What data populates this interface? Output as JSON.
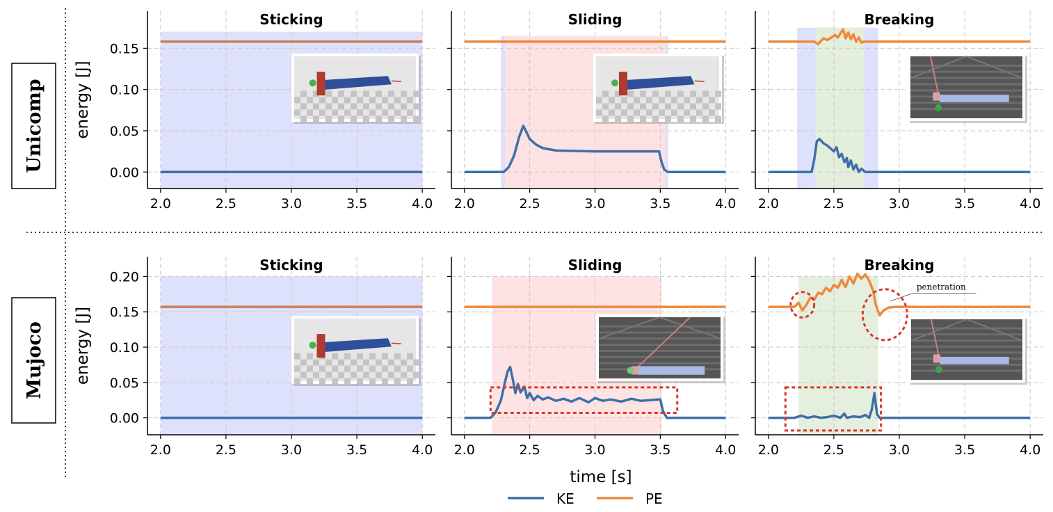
{
  "figure": {
    "xlabel": "time [s]",
    "row_labels": [
      "Unicomp",
      "Mujoco"
    ],
    "panel_titles": [
      "Sticking",
      "Sliding",
      "Breaking"
    ],
    "annotation": "penetration"
  },
  "legend": {
    "placement": "bottom-center",
    "entries": [
      {
        "label": "KE",
        "color": "#3f6fa8"
      },
      {
        "label": "PE",
        "color": "#ee8a3a"
      }
    ]
  },
  "colors": {
    "ke": "#3f6fa8",
    "pe": "#ee8a3a",
    "pe_muted": "#cf7d55",
    "sticking_shade": "#dcdffb",
    "sliding_shade": "#fde1e1",
    "breaking_shade": "#e3eedb",
    "highlight": "#d9372a"
  },
  "chart_data": [
    {
      "type": "line",
      "id": "unicomp-sticking",
      "row": "Unicomp",
      "title": "Sticking",
      "xlabel": "",
      "ylabel": "energy [J]",
      "xlim": [
        1.9,
        4.1
      ],
      "ylim": [
        -0.02,
        0.195
      ],
      "xticks": [
        "2.0",
        "2.5",
        "3.0",
        "3.5",
        "4.0"
      ],
      "xtick_values": [
        2.0,
        2.5,
        3.0,
        3.5,
        4.0
      ],
      "yticks": [
        "0.00",
        "0.05",
        "0.10",
        "0.15"
      ],
      "ytick_values": [
        0.0,
        0.05,
        0.1,
        0.15
      ],
      "grid": true,
      "regions": [
        {
          "phase": "sticking",
          "x0": 2.0,
          "x1": 4.0,
          "y0": -0.02,
          "y1": 0.17
        }
      ],
      "series": [
        {
          "name": "KE",
          "color_key": "ke",
          "x": [
            2.0,
            4.0
          ],
          "values": [
            0.0,
            0.0
          ]
        },
        {
          "name": "PE",
          "color_key": "pe_muted",
          "x": [
            2.0,
            4.0
          ],
          "values": [
            0.158,
            0.158
          ]
        }
      ],
      "highlights": []
    },
    {
      "type": "line",
      "id": "unicomp-sliding",
      "row": "Unicomp",
      "title": "Sliding",
      "xlabel": "",
      "ylabel": "",
      "xlim": [
        1.9,
        4.1
      ],
      "ylim": [
        -0.02,
        0.195
      ],
      "xticks": [
        "2.0",
        "2.5",
        "3.0",
        "3.5",
        "4.0"
      ],
      "xtick_values": [
        2.0,
        2.5,
        3.0,
        3.5,
        4.0
      ],
      "yticks": [],
      "ytick_values": [
        0.0,
        0.05,
        0.1,
        0.15
      ],
      "grid": true,
      "regions": [
        {
          "phase": "sticking",
          "x0": 2.28,
          "x1": 3.56,
          "y0": -0.02,
          "y1": 0.165
        },
        {
          "phase": "sliding",
          "x0": 2.31,
          "x1": 3.54,
          "y0": -0.02,
          "y1": 0.165
        }
      ],
      "series": [
        {
          "name": "KE",
          "color_key": "ke",
          "x": [
            2.0,
            2.3,
            2.34,
            2.38,
            2.42,
            2.45,
            2.47,
            2.5,
            2.55,
            2.6,
            2.7,
            2.85,
            3.0,
            3.2,
            3.4,
            3.49,
            3.51,
            3.53,
            3.56,
            4.0
          ],
          "values": [
            0.0,
            0.0,
            0.006,
            0.02,
            0.043,
            0.056,
            0.05,
            0.04,
            0.033,
            0.029,
            0.026,
            0.0255,
            0.025,
            0.025,
            0.025,
            0.025,
            0.012,
            0.003,
            0.0,
            0.0
          ]
        },
        {
          "name": "PE",
          "color_key": "pe",
          "x": [
            2.0,
            4.0
          ],
          "values": [
            0.158,
            0.158
          ]
        }
      ],
      "highlights": []
    },
    {
      "type": "line",
      "id": "unicomp-breaking",
      "row": "Unicomp",
      "title": "Breaking",
      "xlabel": "",
      "ylabel": "",
      "xlim": [
        1.9,
        4.1
      ],
      "ylim": [
        -0.02,
        0.195
      ],
      "xticks": [
        "2.0",
        "2.5",
        "3.0",
        "3.5",
        "4.0"
      ],
      "xtick_values": [
        2.0,
        2.5,
        3.0,
        3.5,
        4.0
      ],
      "yticks": [],
      "ytick_values": [
        0.0,
        0.05,
        0.1,
        0.15
      ],
      "grid": true,
      "regions": [
        {
          "phase": "sticking",
          "x0": 2.22,
          "x1": 2.84,
          "y0": -0.02,
          "y1": 0.175
        },
        {
          "phase": "breaking",
          "x0": 2.36,
          "x1": 2.73,
          "y0": -0.02,
          "y1": 0.175
        }
      ],
      "series": [
        {
          "name": "KE",
          "color_key": "ke",
          "x": [
            2.0,
            2.33,
            2.35,
            2.37,
            2.39,
            2.42,
            2.45,
            2.48,
            2.5,
            2.52,
            2.54,
            2.56,
            2.58,
            2.6,
            2.61,
            2.63,
            2.65,
            2.67,
            2.69,
            2.71,
            2.74,
            4.0
          ],
          "values": [
            0.0,
            0.0,
            0.015,
            0.037,
            0.04,
            0.035,
            0.032,
            0.028,
            0.025,
            0.03,
            0.018,
            0.022,
            0.012,
            0.017,
            0.006,
            0.014,
            0.003,
            0.009,
            0.0,
            0.004,
            0.0,
            0.0
          ]
        },
        {
          "name": "PE",
          "color_key": "pe",
          "x": [
            2.0,
            2.35,
            2.38,
            2.42,
            2.45,
            2.48,
            2.51,
            2.53,
            2.55,
            2.57,
            2.59,
            2.61,
            2.63,
            2.65,
            2.67,
            2.69,
            2.71,
            2.73,
            4.0
          ],
          "values": [
            0.158,
            0.158,
            0.155,
            0.162,
            0.16,
            0.163,
            0.166,
            0.163,
            0.168,
            0.173,
            0.162,
            0.169,
            0.161,
            0.167,
            0.158,
            0.163,
            0.157,
            0.158,
            0.158
          ]
        }
      ],
      "highlights": []
    },
    {
      "type": "line",
      "id": "mujoco-sticking",
      "row": "Mujoco",
      "title": "Sticking",
      "xlabel": "",
      "ylabel": "energy [J]",
      "xlim": [
        1.9,
        4.1
      ],
      "ylim": [
        -0.024,
        0.228
      ],
      "xticks": [
        "2.0",
        "2.5",
        "3.0",
        "3.5",
        "4.0"
      ],
      "xtick_values": [
        2.0,
        2.5,
        3.0,
        3.5,
        4.0
      ],
      "yticks": [
        "0.00",
        "0.05",
        "0.10",
        "0.15",
        "0.20"
      ],
      "ytick_values": [
        0.0,
        0.05,
        0.1,
        0.15,
        0.2
      ],
      "grid": true,
      "regions": [
        {
          "phase": "sticking",
          "x0": 2.0,
          "x1": 4.0,
          "y0": -0.024,
          "y1": 0.2
        }
      ],
      "series": [
        {
          "name": "KE",
          "color_key": "ke",
          "x": [
            2.0,
            4.0
          ],
          "values": [
            0.0,
            0.0
          ]
        },
        {
          "name": "PE",
          "color_key": "pe_muted",
          "x": [
            2.0,
            4.0
          ],
          "values": [
            0.157,
            0.157
          ]
        }
      ],
      "highlights": []
    },
    {
      "type": "line",
      "id": "mujoco-sliding",
      "row": "Mujoco",
      "title": "Sliding",
      "xlabel": "",
      "ylabel": "",
      "xlim": [
        1.9,
        4.1
      ],
      "ylim": [
        -0.024,
        0.228
      ],
      "xticks": [
        "2.0",
        "2.5",
        "3.0",
        "3.5",
        "4.0"
      ],
      "xtick_values": [
        2.0,
        2.5,
        3.0,
        3.5,
        4.0
      ],
      "yticks": [],
      "ytick_values": [
        0.0,
        0.05,
        0.1,
        0.15,
        0.2
      ],
      "grid": true,
      "regions": [
        {
          "phase": "sliding",
          "x0": 2.21,
          "x1": 3.51,
          "y0": -0.024,
          "y1": 0.2
        }
      ],
      "series": [
        {
          "name": "KE",
          "color_key": "ke",
          "x": [
            2.0,
            2.2,
            2.24,
            2.28,
            2.31,
            2.33,
            2.35,
            2.37,
            2.39,
            2.41,
            2.43,
            2.46,
            2.48,
            2.5,
            2.53,
            2.56,
            2.6,
            2.64,
            2.7,
            2.76,
            2.82,
            2.88,
            2.95,
            3.0,
            3.06,
            3.12,
            3.2,
            3.28,
            3.35,
            3.42,
            3.48,
            3.5,
            3.52,
            3.55,
            4.0
          ],
          "values": [
            0.0,
            0.0,
            0.008,
            0.025,
            0.05,
            0.065,
            0.072,
            0.055,
            0.035,
            0.048,
            0.036,
            0.044,
            0.028,
            0.035,
            0.025,
            0.031,
            0.026,
            0.029,
            0.024,
            0.027,
            0.023,
            0.028,
            0.022,
            0.028,
            0.024,
            0.026,
            0.023,
            0.027,
            0.024,
            0.025,
            0.026,
            0.026,
            0.01,
            0.0,
            0.0
          ]
        },
        {
          "name": "PE",
          "color_key": "pe",
          "x": [
            2.0,
            4.0
          ],
          "values": [
            0.157,
            0.157
          ]
        }
      ],
      "highlights": [
        {
          "shape": "rect",
          "x0": 2.2,
          "x1": 3.63,
          "y0": 0.007,
          "y1": 0.043
        }
      ]
    },
    {
      "type": "line",
      "id": "mujoco-breaking",
      "row": "Mujoco",
      "title": "Breaking",
      "xlabel": "",
      "ylabel": "",
      "xlim": [
        1.9,
        4.1
      ],
      "ylim": [
        -0.024,
        0.228
      ],
      "xticks": [
        "2.0",
        "2.5",
        "3.0",
        "3.5",
        "4.0"
      ],
      "xtick_values": [
        2.0,
        2.5,
        3.0,
        3.5,
        4.0
      ],
      "yticks": [],
      "ytick_values": [
        0.0,
        0.05,
        0.1,
        0.15,
        0.2
      ],
      "grid": true,
      "regions": [
        {
          "phase": "breaking",
          "x0": 2.23,
          "x1": 2.84,
          "y0": -0.024,
          "y1": 0.2
        }
      ],
      "series": [
        {
          "name": "KE",
          "color_key": "ke",
          "x": [
            2.0,
            2.2,
            2.25,
            2.3,
            2.35,
            2.4,
            2.45,
            2.5,
            2.55,
            2.58,
            2.6,
            2.65,
            2.7,
            2.74,
            2.77,
            2.79,
            2.81,
            2.83,
            2.85,
            4.0
          ],
          "values": [
            0.0,
            0.0,
            0.003,
            0.0,
            0.002,
            0.0,
            0.001,
            0.003,
            0.0,
            0.006,
            0.0,
            0.002,
            0.001,
            0.004,
            0.0,
            0.012,
            0.035,
            0.005,
            0.0,
            0.0
          ]
        },
        {
          "name": "PE",
          "color_key": "pe",
          "x": [
            2.0,
            2.2,
            2.23,
            2.26,
            2.29,
            2.32,
            2.35,
            2.38,
            2.41,
            2.44,
            2.47,
            2.5,
            2.53,
            2.56,
            2.59,
            2.62,
            2.65,
            2.68,
            2.71,
            2.74,
            2.77,
            2.8,
            2.82,
            2.85,
            2.88,
            2.92,
            2.97,
            3.0,
            4.0
          ],
          "values": [
            0.157,
            0.157,
            0.163,
            0.152,
            0.16,
            0.17,
            0.167,
            0.177,
            0.175,
            0.184,
            0.179,
            0.188,
            0.184,
            0.195,
            0.185,
            0.2,
            0.19,
            0.204,
            0.197,
            0.203,
            0.194,
            0.18,
            0.16,
            0.145,
            0.152,
            0.156,
            0.157,
            0.157,
            0.157
          ]
        }
      ],
      "highlights": [
        {
          "shape": "rect",
          "x0": 2.13,
          "x1": 2.86,
          "y0": -0.018,
          "y1": 0.043
        },
        {
          "shape": "circle",
          "cx": 2.26,
          "cy": 0.16,
          "rx": 0.09,
          "ry": 0.018
        },
        {
          "shape": "circle",
          "cx": 2.89,
          "cy": 0.146,
          "rx": 0.17,
          "ry": 0.036
        }
      ],
      "annotation": {
        "x": 2.93,
        "y": 0.165,
        "text_x": 3.1,
        "text_y": 0.182
      }
    }
  ]
}
